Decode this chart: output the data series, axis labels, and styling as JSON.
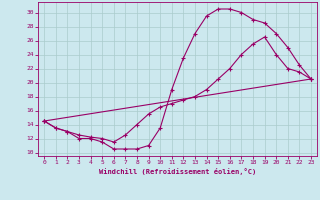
{
  "xlabel": "Windchill (Refroidissement éolien,°C)",
  "bg_color": "#cce8ee",
  "line_color": "#990066",
  "grid_color": "#aacccc",
  "xlim": [
    -0.5,
    23.5
  ],
  "ylim": [
    9.5,
    31.5
  ],
  "xticks": [
    0,
    1,
    2,
    3,
    4,
    5,
    6,
    7,
    8,
    9,
    10,
    11,
    12,
    13,
    14,
    15,
    16,
    17,
    18,
    19,
    20,
    21,
    22,
    23
  ],
  "yticks": [
    10,
    12,
    14,
    16,
    18,
    20,
    22,
    24,
    26,
    28,
    30
  ],
  "curve1_x": [
    0,
    1,
    2,
    3,
    4,
    5,
    6,
    7,
    8,
    9,
    10,
    11,
    12,
    13,
    14,
    15,
    16,
    17,
    18,
    19,
    20,
    21,
    22,
    23
  ],
  "curve1_y": [
    14.5,
    13.5,
    13.0,
    12.0,
    12.0,
    11.5,
    10.5,
    10.5,
    10.5,
    11.0,
    13.5,
    19.0,
    23.5,
    27.0,
    29.5,
    30.5,
    30.5,
    30.0,
    29.0,
    28.5,
    27.0,
    25.0,
    22.5,
    20.5
  ],
  "curve2_x": [
    0,
    1,
    2,
    3,
    4,
    5,
    6,
    7,
    8,
    9,
    10,
    11,
    12,
    13,
    14,
    15,
    16,
    17,
    18,
    19,
    20,
    21,
    22,
    23
  ],
  "curve2_y": [
    14.5,
    13.5,
    13.0,
    12.5,
    12.2,
    12.0,
    11.5,
    12.5,
    14.0,
    15.5,
    16.5,
    17.0,
    17.5,
    18.0,
    19.0,
    20.5,
    22.0,
    24.0,
    25.5,
    26.5,
    24.0,
    22.0,
    21.5,
    20.5
  ],
  "curve3_x": [
    0,
    23
  ],
  "curve3_y": [
    14.5,
    20.5
  ]
}
